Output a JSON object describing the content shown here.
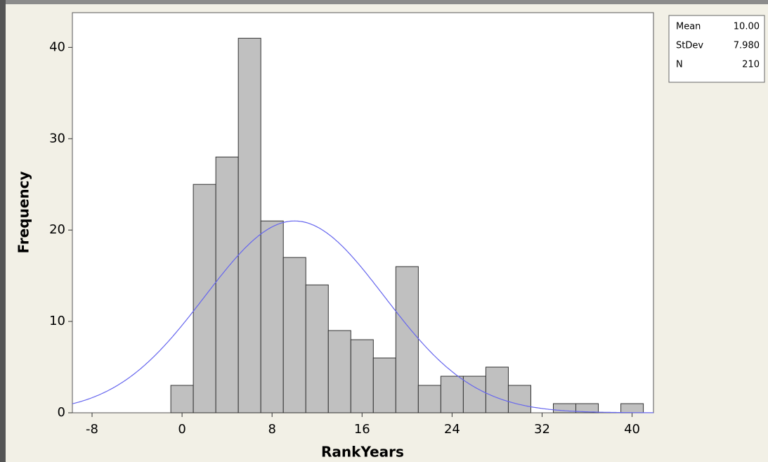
{
  "chart_data": {
    "type": "histogram",
    "xlabel": "RankYears",
    "ylabel": "Frequency",
    "bins": [
      -1,
      1,
      3,
      5,
      7,
      9,
      11,
      13,
      15,
      17,
      19,
      21,
      23,
      25,
      27,
      29,
      31,
      33,
      35,
      37,
      39,
      41
    ],
    "values": [
      3,
      25,
      28,
      41,
      21,
      17,
      14,
      9,
      8,
      6,
      16,
      3,
      4,
      4,
      5,
      3,
      0,
      1,
      1,
      0,
      1
    ],
    "color": "#c0c0c0",
    "curve_color": "#6666ee",
    "xlim": [
      -9.75,
      41.9
    ],
    "ylim": [
      0,
      43.8
    ],
    "xticks": [
      -8,
      0,
      8,
      16,
      24,
      32,
      40
    ],
    "yticks": [
      0,
      10,
      20,
      30,
      40
    ],
    "stats": [
      {
        "name": "Mean",
        "value": 10,
        "label": "10.00"
      },
      {
        "name": "StDev",
        "value": 7.98,
        "label": "7.980"
      },
      {
        "name": "N",
        "value": 210,
        "label": "210"
      }
    ]
  }
}
